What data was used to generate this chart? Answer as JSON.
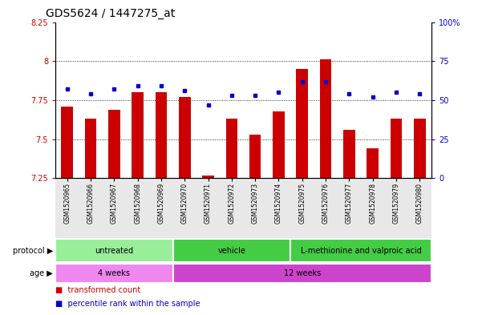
{
  "title": "GDS5624 / 1447275_at",
  "samples": [
    "GSM1520965",
    "GSM1520966",
    "GSM1520967",
    "GSM1520968",
    "GSM1520969",
    "GSM1520970",
    "GSM1520971",
    "GSM1520972",
    "GSM1520973",
    "GSM1520974",
    "GSM1520975",
    "GSM1520976",
    "GSM1520977",
    "GSM1520978",
    "GSM1520979",
    "GSM1520980"
  ],
  "transformed_count": [
    7.71,
    7.63,
    7.69,
    7.8,
    7.8,
    7.77,
    7.27,
    7.63,
    7.53,
    7.68,
    7.95,
    8.01,
    7.56,
    7.44,
    7.63,
    7.63
  ],
  "percentile_rank": [
    57,
    54,
    57,
    59,
    59,
    56,
    47,
    53,
    53,
    55,
    62,
    62,
    54,
    52,
    55,
    54
  ],
  "ylim_left": [
    7.25,
    8.25
  ],
  "ylim_right": [
    0,
    100
  ],
  "yticks_left": [
    7.25,
    7.5,
    7.75,
    8.0,
    8.25
  ],
  "ytick_labels_left": [
    "7.25",
    "7.5",
    "7.75",
    "8",
    "8.25"
  ],
  "yticks_right": [
    0,
    25,
    50,
    75,
    100
  ],
  "ytick_labels_right": [
    "0",
    "25",
    "50",
    "75",
    "100%"
  ],
  "hlines": [
    7.5,
    7.75,
    8.0
  ],
  "bar_color": "#cc0000",
  "dot_color": "#0000cc",
  "bar_width": 0.5,
  "protocol_groups": [
    {
      "label": "untreated",
      "start": 0,
      "end": 4,
      "color": "#99ee99"
    },
    {
      "label": "vehicle",
      "start": 5,
      "end": 9,
      "color": "#44cc44"
    },
    {
      "label": "L-methionine and valproic acid",
      "start": 10,
      "end": 15,
      "color": "#44cc44"
    }
  ],
  "age_groups": [
    {
      "label": "4 weeks",
      "start": 0,
      "end": 4,
      "color": "#ee88ee"
    },
    {
      "label": "12 weeks",
      "start": 5,
      "end": 15,
      "color": "#cc44cc"
    }
  ],
  "bg_color": "#ffffff",
  "plot_bg_color": "#ffffff",
  "tick_label_color_left": "#cc0000",
  "tick_label_color_right": "#0000cc",
  "legend_items": [
    {
      "label": "transformed count",
      "color": "#cc0000"
    },
    {
      "label": "percentile rank within the sample",
      "color": "#0000cc"
    }
  ],
  "protocol_label": "protocol",
  "age_label": "age"
}
